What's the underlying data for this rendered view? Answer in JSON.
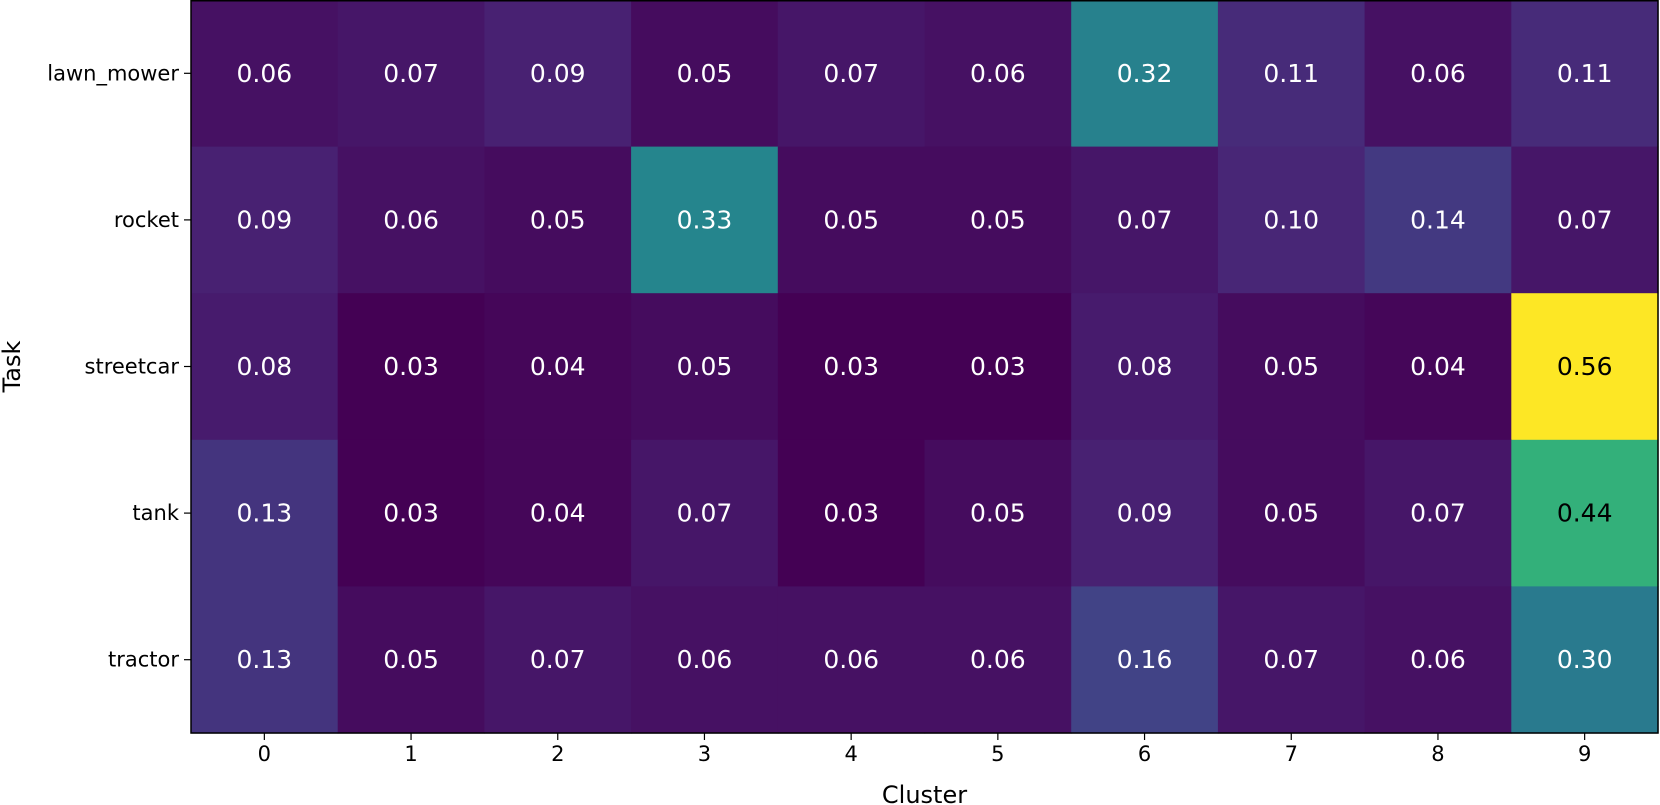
{
  "chart_data": {
    "type": "heatmap",
    "title": "",
    "xlabel": "Cluster",
    "ylabel": "Task",
    "x_categories": [
      "0",
      "1",
      "2",
      "3",
      "4",
      "5",
      "6",
      "7",
      "8",
      "9"
    ],
    "y_categories": [
      "lawn_mower",
      "rocket",
      "streetcar",
      "tank",
      "tractor"
    ],
    "values": [
      [
        0.06,
        0.07,
        0.09,
        0.05,
        0.07,
        0.06,
        0.32,
        0.11,
        0.06,
        0.11
      ],
      [
        0.09,
        0.06,
        0.05,
        0.33,
        0.05,
        0.05,
        0.07,
        0.1,
        0.14,
        0.07
      ],
      [
        0.08,
        0.03,
        0.04,
        0.05,
        0.03,
        0.03,
        0.08,
        0.05,
        0.04,
        0.56
      ],
      [
        0.13,
        0.03,
        0.04,
        0.07,
        0.03,
        0.05,
        0.09,
        0.05,
        0.07,
        0.44
      ],
      [
        0.13,
        0.05,
        0.07,
        0.06,
        0.06,
        0.06,
        0.16,
        0.07,
        0.06,
        0.3
      ]
    ],
    "value_range": [
      0.03,
      0.56
    ],
    "colormap": "viridis",
    "grid": false,
    "legend": "none"
  }
}
